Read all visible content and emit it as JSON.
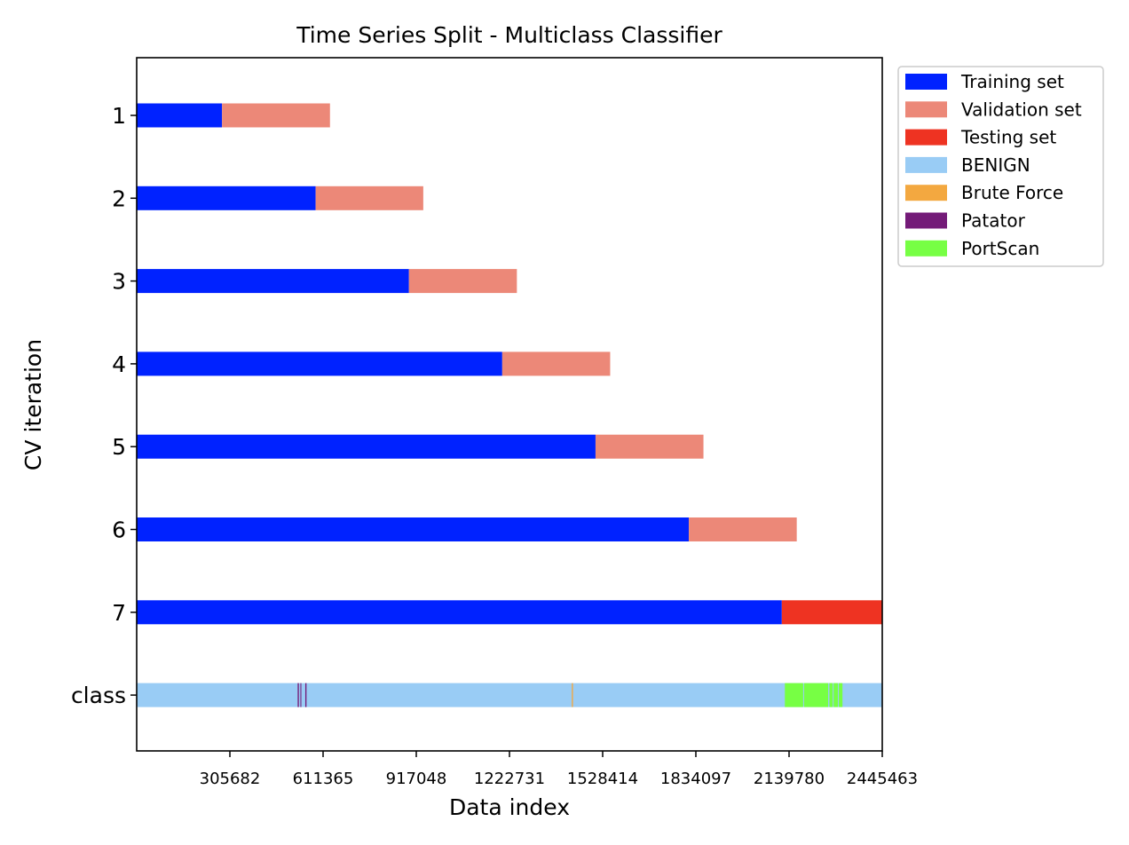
{
  "chart_data": {
    "type": "bar",
    "orientation": "horizontal-segments",
    "title": "Time Series Split - Multiclass Classifier",
    "xlabel": "Data index",
    "ylabel": "CV iteration",
    "xlim": [
      0,
      2445463
    ],
    "xticks": [
      305682,
      611365,
      917048,
      1222731,
      1528414,
      1834097,
      2139780,
      2445463
    ],
    "xtick_labels": [
      "305682",
      "611365",
      "917048",
      "1222731",
      "1528414",
      "1834097",
      "2139780",
      "2445463"
    ],
    "grid": false,
    "legend_position": "outside-top-right",
    "rows": [
      {
        "label": "1",
        "segments": [
          {
            "series": "Training set",
            "start": 0,
            "end": 280000
          },
          {
            "series": "Validation set",
            "start": 280000,
            "end": 634000
          }
        ]
      },
      {
        "label": "2",
        "segments": [
          {
            "series": "Training set",
            "start": 0,
            "end": 587000
          },
          {
            "series": "Validation set",
            "start": 587000,
            "end": 940000
          }
        ]
      },
      {
        "label": "3",
        "segments": [
          {
            "series": "Training set",
            "start": 0,
            "end": 893000
          },
          {
            "series": "Validation set",
            "start": 893000,
            "end": 1247000
          }
        ]
      },
      {
        "label": "4",
        "segments": [
          {
            "series": "Training set",
            "start": 0,
            "end": 1199000
          },
          {
            "series": "Validation set",
            "start": 1199000,
            "end": 1553000
          }
        ]
      },
      {
        "label": "5",
        "segments": [
          {
            "series": "Training set",
            "start": 0,
            "end": 1505000
          },
          {
            "series": "Validation set",
            "start": 1505000,
            "end": 1859000
          }
        ]
      },
      {
        "label": "6",
        "segments": [
          {
            "series": "Training set",
            "start": 0,
            "end": 1811000
          },
          {
            "series": "Validation set",
            "start": 1811000,
            "end": 2165000
          }
        ]
      },
      {
        "label": "7",
        "segments": [
          {
            "series": "Training set",
            "start": 0,
            "end": 2116000
          },
          {
            "series": "Testing set",
            "start": 2116000,
            "end": 2445463
          }
        ]
      },
      {
        "label": "class",
        "segments": [
          {
            "series": "BENIGN",
            "start": 0,
            "end": 2445463
          },
          {
            "series": "Patator",
            "start": 528000,
            "end": 532000
          },
          {
            "series": "Patator",
            "start": 537000,
            "end": 540000
          },
          {
            "series": "Patator",
            "start": 553000,
            "end": 557000
          },
          {
            "series": "Brute Force",
            "start": 1427000,
            "end": 1431000
          },
          {
            "series": "PortScan",
            "start": 2126000,
            "end": 2186000
          },
          {
            "series": "PortScan",
            "start": 2189000,
            "end": 2268000
          },
          {
            "series": "PortScan",
            "start": 2272000,
            "end": 2283000
          },
          {
            "series": "PortScan",
            "start": 2286000,
            "end": 2300000
          },
          {
            "series": "PortScan",
            "start": 2303000,
            "end": 2315000
          }
        ]
      }
    ],
    "series": [
      {
        "name": "Training set",
        "color": "#0022ff"
      },
      {
        "name": "Validation set",
        "color": "#ec8878"
      },
      {
        "name": "Testing set",
        "color": "#ee3322"
      },
      {
        "name": "BENIGN",
        "color": "#99ccf5"
      },
      {
        "name": "Brute Force",
        "color": "#f3a840"
      },
      {
        "name": "Patator",
        "color": "#741b78"
      },
      {
        "name": "PortScan",
        "color": "#77ff44"
      }
    ]
  }
}
